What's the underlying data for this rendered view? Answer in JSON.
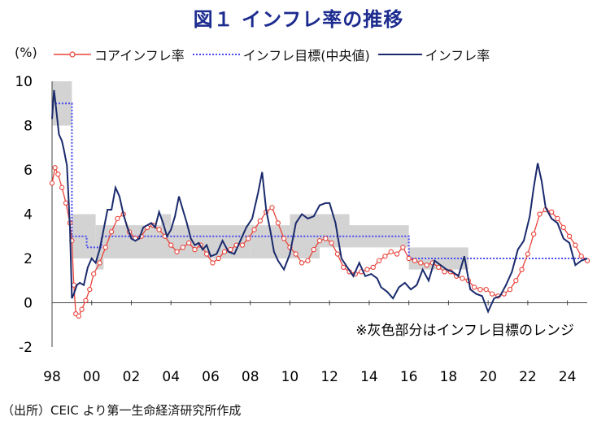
{
  "title": "図１ インフレ率の推移",
  "unit": "(%)",
  "source": "（出所）CEIC より第一生命経済研究所作成",
  "note": "※灰色部分はインフレ目標のレンジ",
  "colors": {
    "core": "#e8433a",
    "target": "#4b4bf0",
    "headline": "#1a2a6c",
    "band": "#d3d3d3",
    "title": "#1c2b8f"
  },
  "chart_data": {
    "type": "line",
    "xlabel": "",
    "ylabel": "",
    "xlim": [
      1998.0,
      2025.0
    ],
    "ylim": [
      -2,
      10
    ],
    "yticks": [
      -2,
      0,
      2,
      4,
      6,
      8,
      10
    ],
    "xtick_labels": [
      "98",
      "00",
      "02",
      "04",
      "06",
      "08",
      "10",
      "12",
      "14",
      "16",
      "18",
      "20",
      "22",
      "24"
    ],
    "legend_position": "top",
    "grid": false,
    "series": [
      {
        "name": "コアインフレ率",
        "style": "line-open-circle",
        "x": [
          1998.0,
          1998.15,
          1998.3,
          1998.5,
          1998.7,
          1998.9,
          1999.0,
          1999.1,
          1999.2,
          1999.35,
          1999.5,
          1999.7,
          1999.9,
          2000.1,
          2000.4,
          2000.7,
          2001.0,
          2001.3,
          2001.6,
          2001.9,
          2002.2,
          2002.5,
          2002.8,
          2003.1,
          2003.4,
          2003.7,
          2004.0,
          2004.3,
          2004.6,
          2004.9,
          2005.2,
          2005.5,
          2005.8,
          2006.1,
          2006.4,
          2006.7,
          2007.0,
          2007.3,
          2007.6,
          2007.9,
          2008.2,
          2008.5,
          2008.8,
          2009.1,
          2009.4,
          2009.7,
          2010.0,
          2010.3,
          2010.6,
          2010.9,
          2011.2,
          2011.5,
          2011.8,
          2012.1,
          2012.4,
          2012.7,
          2013.0,
          2013.3,
          2013.6,
          2013.9,
          2014.2,
          2014.5,
          2014.8,
          2015.1,
          2015.4,
          2015.7,
          2016.0,
          2016.3,
          2016.6,
          2016.9,
          2017.2,
          2017.5,
          2017.8,
          2018.1,
          2018.4,
          2018.7,
          2019.0,
          2019.3,
          2019.6,
          2019.9,
          2020.2,
          2020.5,
          2020.8,
          2021.1,
          2021.4,
          2021.7,
          2022.0,
          2022.3,
          2022.6,
          2022.9,
          2023.2,
          2023.5,
          2023.8,
          2024.1,
          2024.4,
          2024.7,
          2025.0
        ],
        "values": [
          5.4,
          6.1,
          5.8,
          5.2,
          4.5,
          3.6,
          2.8,
          0.8,
          -0.5,
          -0.6,
          -0.3,
          0.1,
          0.6,
          1.3,
          1.8,
          2.5,
          3.2,
          3.8,
          4.0,
          3.2,
          2.9,
          3.0,
          3.4,
          3.5,
          3.3,
          3.0,
          2.6,
          2.3,
          2.5,
          2.7,
          2.4,
          2.6,
          2.2,
          1.8,
          2.0,
          2.3,
          2.4,
          2.6,
          2.6,
          2.9,
          3.3,
          3.7,
          4.1,
          4.3,
          3.6,
          2.9,
          2.5,
          2.2,
          1.8,
          1.9,
          2.4,
          2.8,
          2.9,
          2.7,
          2.2,
          1.6,
          1.4,
          1.3,
          1.4,
          1.5,
          1.6,
          1.9,
          2.1,
          2.3,
          2.2,
          2.5,
          2.0,
          1.9,
          1.8,
          1.7,
          1.8,
          1.6,
          1.4,
          1.4,
          1.2,
          1.1,
          1.0,
          0.7,
          0.6,
          0.6,
          0.4,
          0.3,
          0.4,
          0.6,
          1.0,
          1.5,
          2.2,
          3.1,
          4.0,
          4.2,
          4.1,
          3.8,
          3.4,
          3.0,
          2.6,
          2.1,
          1.9
        ]
      },
      {
        "name": "インフレ目標(中央値)",
        "style": "dotted",
        "x": [
          1998.0,
          1999.0,
          1999.0,
          1999.75,
          1999.75,
          2000.5,
          2000.5,
          2016.0,
          2016.0,
          2025.0
        ],
        "values": [
          9.0,
          9.0,
          3.0,
          3.0,
          2.5,
          2.5,
          3.0,
          3.0,
          2.0,
          2.0
        ]
      },
      {
        "name": "インフレ率",
        "style": "line",
        "x": [
          1998.0,
          1998.1,
          1998.2,
          1998.35,
          1998.5,
          1998.6,
          1998.75,
          1998.9,
          1999.0,
          1999.1,
          1999.25,
          1999.4,
          1999.6,
          1999.8,
          2000.0,
          2000.2,
          2000.4,
          2000.6,
          2000.8,
          2001.0,
          2001.2,
          2001.4,
          2001.6,
          2001.8,
          2002.0,
          2002.2,
          2002.4,
          2002.6,
          2002.8,
          2003.0,
          2003.2,
          2003.4,
          2003.6,
          2003.8,
          2004.0,
          2004.2,
          2004.4,
          2004.6,
          2004.8,
          2005.0,
          2005.2,
          2005.4,
          2005.6,
          2005.8,
          2006.0,
          2006.3,
          2006.6,
          2006.9,
          2007.2,
          2007.5,
          2007.8,
          2008.1,
          2008.4,
          2008.6,
          2008.8,
          2009.0,
          2009.2,
          2009.4,
          2009.7,
          2010.0,
          2010.3,
          2010.6,
          2010.9,
          2011.2,
          2011.5,
          2011.8,
          2012.0,
          2012.3,
          2012.6,
          2012.9,
          2013.2,
          2013.5,
          2013.8,
          2014.1,
          2014.4,
          2014.6,
          2014.9,
          2015.2,
          2015.5,
          2015.8,
          2016.1,
          2016.4,
          2016.7,
          2017.0,
          2017.3,
          2017.6,
          2017.9,
          2018.2,
          2018.5,
          2018.8,
          2019.1,
          2019.4,
          2019.7,
          2020.0,
          2020.3,
          2020.6,
          2020.9,
          2021.2,
          2021.5,
          2021.8,
          2022.1,
          2022.3,
          2022.5,
          2022.7,
          2022.9,
          2023.2,
          2023.5,
          2023.8,
          2024.1,
          2024.4,
          2024.7,
          2025.0
        ],
        "values": [
          8.3,
          9.6,
          8.8,
          7.6,
          7.3,
          6.9,
          6.2,
          3.5,
          0.2,
          0.4,
          0.8,
          0.9,
          0.8,
          1.6,
          2.0,
          1.8,
          2.4,
          3.3,
          4.2,
          4.2,
          5.2,
          4.8,
          4.0,
          3.4,
          2.9,
          2.8,
          2.9,
          3.4,
          3.5,
          3.6,
          3.4,
          4.1,
          3.6,
          3.0,
          3.3,
          3.9,
          4.8,
          4.2,
          3.6,
          2.9,
          2.6,
          2.7,
          2.4,
          2.6,
          2.1,
          2.2,
          2.8,
          2.3,
          2.2,
          2.8,
          3.4,
          3.8,
          5.0,
          5.9,
          4.2,
          3.3,
          2.3,
          1.9,
          1.5,
          2.2,
          3.6,
          4.0,
          3.8,
          3.9,
          4.4,
          4.5,
          4.5,
          3.6,
          2.0,
          1.6,
          1.2,
          1.8,
          1.2,
          1.3,
          1.1,
          0.7,
          0.5,
          0.2,
          0.7,
          0.9,
          0.6,
          0.8,
          1.5,
          1.0,
          1.9,
          1.7,
          1.5,
          1.4,
          1.2,
          2.1,
          0.6,
          0.4,
          0.3,
          -0.4,
          0.2,
          0.3,
          0.8,
          1.4,
          2.4,
          2.8,
          3.9,
          5.2,
          6.3,
          5.5,
          4.3,
          3.8,
          3.6,
          2.9,
          2.7,
          1.7,
          1.9,
          2.0
        ]
      }
    ],
    "target_band": [
      {
        "x": [
          1998.0,
          1999.0
        ],
        "low": 8.0,
        "high": 10.0
      },
      {
        "x": [
          1999.0,
          2000.2
        ],
        "low": 2.0,
        "high": 4.0
      },
      {
        "x": [
          2000.2,
          2000.6
        ],
        "low": 1.5,
        "high": 3.5
      },
      {
        "x": [
          2000.6,
          2003.5
        ],
        "low": 2.0,
        "high": 3.5
      },
      {
        "x": [
          2003.5,
          2004.0
        ],
        "low": 2.0,
        "high": 4.0
      },
      {
        "x": [
          2004.0,
          2008.0
        ],
        "low": 2.0,
        "high": 3.5
      },
      {
        "x": [
          2008.0,
          2010.0
        ],
        "low": 2.0,
        "high": 3.5
      },
      {
        "x": [
          2010.0,
          2011.5
        ],
        "low": 2.0,
        "high": 4.0
      },
      {
        "x": [
          2011.5,
          2013.0
        ],
        "low": 2.5,
        "high": 4.0
      },
      {
        "x": [
          2013.0,
          2016.0
        ],
        "low": 2.5,
        "high": 3.5
      },
      {
        "x": [
          2016.0,
          2019.0
        ],
        "low": 1.5,
        "high": 2.5
      }
    ]
  }
}
